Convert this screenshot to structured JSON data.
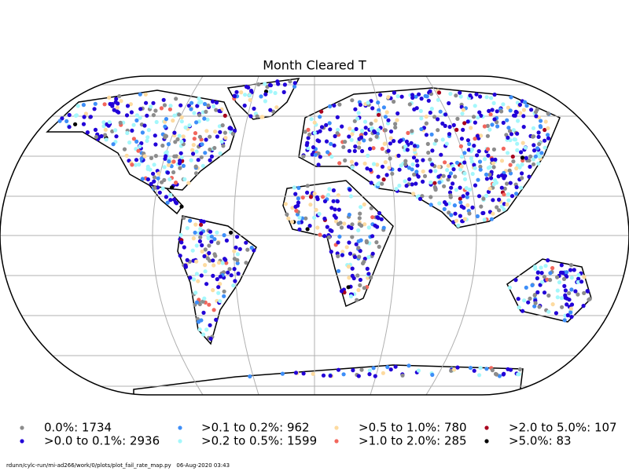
{
  "title": "Month Cleared T",
  "legend": [
    {
      "label": "0.0%: 1734",
      "color": "#8c8c8c"
    },
    {
      "label": ">0.0 to 0.1%: 2936",
      "color": "#2200d8"
    },
    {
      "label": ">0.1 to 0.2%: 962",
      "color": "#3d8ef8"
    },
    {
      "label": ">0.2 to 0.5%: 1599",
      "color": "#a4f7fb"
    },
    {
      "label": ">0.5 to 1.0%: 780",
      "color": "#fddba0"
    },
    {
      "label": ">1.0 to 2.0%: 285",
      "color": "#f2665c"
    },
    {
      "label": ">2.0 to 5.0%: 107",
      "color": "#a8001e"
    },
    {
      "label": ">5.0%: 83",
      "color": "#000000"
    }
  ],
  "footer": "rdunn/cylc-run/mi-ad266/work/0/plots/plot_fail_rate_map.py   06-Aug-2020 03:43"
}
